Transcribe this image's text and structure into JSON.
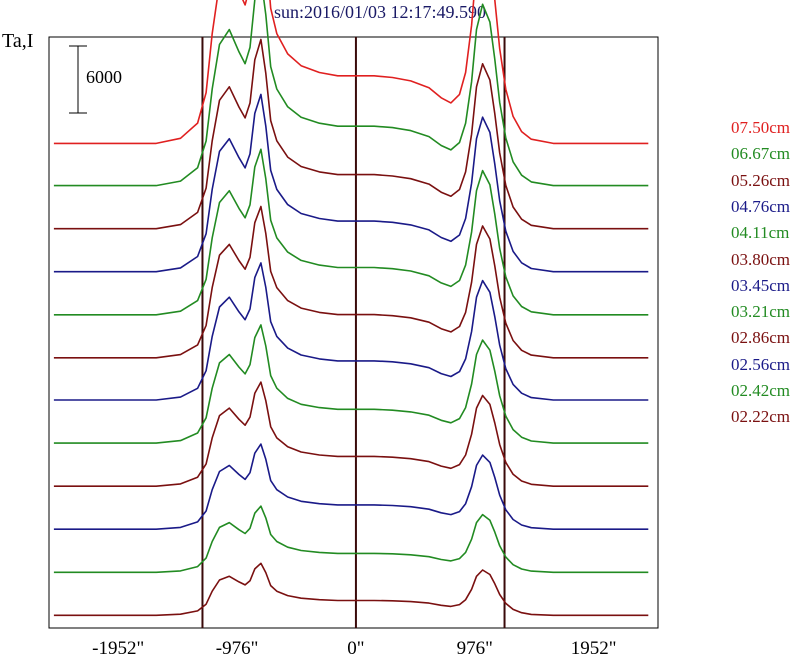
{
  "chart_data": {
    "type": "line",
    "title": "sun:2016/01/03 12:17:49.590",
    "ylabel": "Ta,I",
    "xlabel": "",
    "xlim": [
      -2520,
      2480
    ],
    "x_unit": "arcsec",
    "ylim": [
      0,
      35000
    ],
    "x_tick_labels": [
      "-1952\"",
      "-976\"",
      "0\"",
      "976\"",
      "1952\""
    ],
    "x_ticks": [
      -1952,
      -976,
      0,
      976,
      1952
    ],
    "reference_lines_x": [
      -1260,
      0,
      1220
    ],
    "scale_bar": {
      "label": "6000",
      "value": 6000
    },
    "grid": false,
    "legend_position": "right",
    "profile": {
      "x": [
        -2480,
        -1640,
        -1440,
        -1300,
        -1230,
        -1180,
        -1120,
        -1040,
        -960,
        -910,
        -870,
        -830,
        -780,
        -740,
        -700,
        -650,
        -560,
        -450,
        -300,
        -150,
        0,
        150,
        300,
        450,
        600,
        700,
        780,
        850,
        900,
        950,
        990,
        1040,
        1100,
        1140,
        1180,
        1230,
        1290,
        1360,
        1440,
        1620,
        2400
      ],
      "y": [
        0,
        0,
        300,
        1200,
        3000,
        6500,
        9500,
        10500,
        9000,
        8200,
        9300,
        12500,
        14000,
        11500,
        8000,
        6500,
        5300,
        4600,
        4200,
        4000,
        4000,
        4000,
        3900,
        3700,
        3300,
        2700,
        2400,
        2900,
        4200,
        7000,
        10500,
        12200,
        11000,
        8500,
        5600,
        3200,
        1600,
        700,
        250,
        0,
        0
      ]
    },
    "series": [
      {
        "name": "07.50cm",
        "color": "#e02020",
        "offset": 28700,
        "amplitude": 1.0
      },
      {
        "name": "06.67cm",
        "color": "#228b22",
        "offset": 26200,
        "amplitude": 0.88
      },
      {
        "name": "05.26cm",
        "color": "#7a1010",
        "offset": 23650,
        "amplitude": 0.8
      },
      {
        "name": "04.76cm",
        "color": "#1a1a88",
        "offset": 21100,
        "amplitude": 0.75
      },
      {
        "name": "04.11cm",
        "color": "#228b22",
        "offset": 18550,
        "amplitude": 0.7
      },
      {
        "name": "03.80cm",
        "color": "#7a1010",
        "offset": 16000,
        "amplitude": 0.64
      },
      {
        "name": "03.45cm",
        "color": "#1a1a88",
        "offset": 13500,
        "amplitude": 0.58
      },
      {
        "name": "03.21cm",
        "color": "#228b22",
        "offset": 10950,
        "amplitude": 0.5
      },
      {
        "name": "02.86cm",
        "color": "#7a1010",
        "offset": 8400,
        "amplitude": 0.44
      },
      {
        "name": "02.56cm",
        "color": "#1a1a88",
        "offset": 5850,
        "amplitude": 0.36
      },
      {
        "name": "02.42cm",
        "color": "#228b22",
        "offset": 3300,
        "amplitude": 0.28
      },
      {
        "name": "02.22cm",
        "color": "#7a1010",
        "offset": 750,
        "amplitude": 0.22
      }
    ]
  }
}
